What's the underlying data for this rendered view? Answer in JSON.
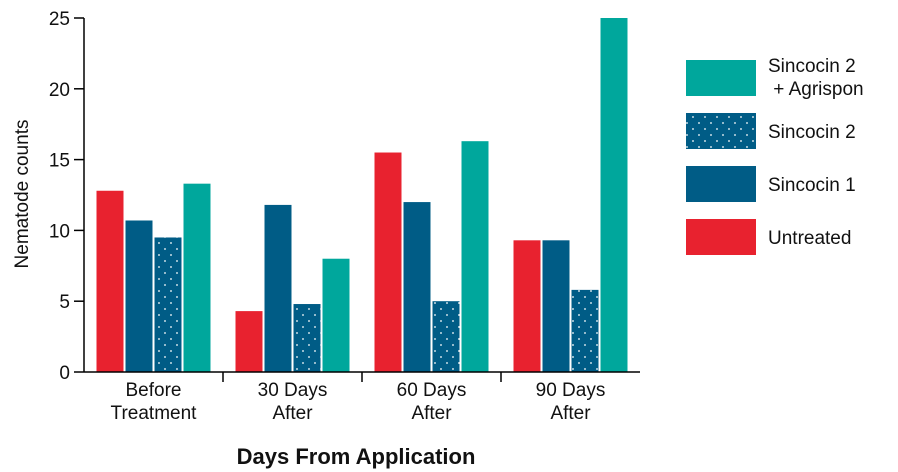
{
  "chart_data": {
    "type": "bar",
    "title": "",
    "xlabel": "Days From Application",
    "ylabel": "Nematode counts",
    "ylim": [
      0,
      25
    ],
    "yticks": [
      0,
      5,
      10,
      15,
      20,
      25
    ],
    "grid": false,
    "legend_position": "right",
    "categories": [
      [
        "Before",
        "Treatment"
      ],
      [
        "30 Days",
        "After"
      ],
      [
        "60 Days",
        "After"
      ],
      [
        "90 Days",
        "After"
      ]
    ],
    "series": [
      {
        "name": "Untreated",
        "color": "#e8222f",
        "pattern": "solid",
        "values": [
          12.8,
          4.3,
          15.5,
          9.3
        ]
      },
      {
        "name": "Sincocin 1",
        "color": "#005c86",
        "pattern": "solid",
        "values": [
          10.7,
          11.8,
          12.0,
          9.3
        ]
      },
      {
        "name": "Sincocin 2",
        "color": "#005c86",
        "pattern": "dots",
        "values": [
          9.5,
          4.8,
          5.0,
          5.8
        ]
      },
      {
        "name": "Sincocin 2 + Agrispon",
        "color": "#00a79c",
        "pattern": "solid",
        "values": [
          13.3,
          8.0,
          16.3,
          25.0
        ]
      }
    ],
    "legend": [
      {
        "series_index": 3,
        "lines": [
          "Sincocin 2",
          " + Agrispon"
        ]
      },
      {
        "series_index": 2,
        "lines": [
          "Sincocin 2"
        ]
      },
      {
        "series_index": 1,
        "lines": [
          "Sincocin 1"
        ]
      },
      {
        "series_index": 0,
        "lines": [
          "Untreated"
        ]
      }
    ]
  }
}
